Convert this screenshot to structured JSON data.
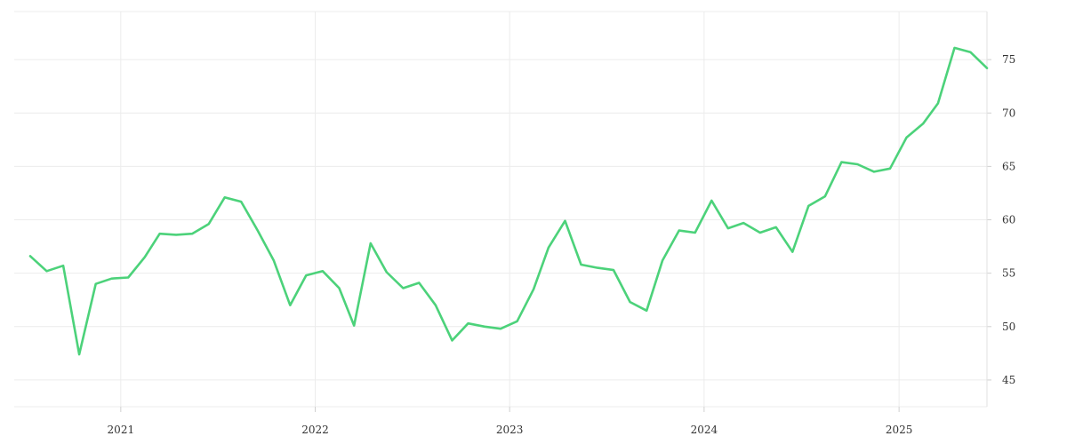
{
  "chart_data": {
    "type": "line",
    "title": "",
    "xlabel": "",
    "ylabel": "",
    "grid": true,
    "y_axis_side": "right",
    "line_color": "#4cd27a",
    "x_ticks": [
      "2021",
      "2022",
      "2023",
      "2024",
      "2025"
    ],
    "y_ticks": [
      45,
      50,
      55,
      60,
      65,
      70,
      75
    ],
    "xlim": [
      "2020-06-15",
      "2025-06-15"
    ],
    "ylim": [
      42.5,
      79.5
    ],
    "series": [
      {
        "x": [
          "2020-07",
          "2020-08",
          "2020-09",
          "2020-10",
          "2020-11",
          "2020-12",
          "2021-01",
          "2021-02",
          "2021-03",
          "2021-04",
          "2021-05",
          "2021-06",
          "2021-07",
          "2021-08",
          "2021-09",
          "2021-10",
          "2021-11",
          "2021-12",
          "2022-01",
          "2022-02",
          "2022-03",
          "2022-04",
          "2022-05",
          "2022-06",
          "2022-07",
          "2022-08",
          "2022-09",
          "2022-10",
          "2022-11",
          "2022-12",
          "2023-01",
          "2023-02",
          "2023-03",
          "2023-04",
          "2023-05",
          "2023-06",
          "2023-07",
          "2023-08",
          "2023-09",
          "2023-10",
          "2023-11",
          "2023-12",
          "2024-01",
          "2024-02",
          "2024-03",
          "2024-04",
          "2024-05",
          "2024-06",
          "2024-07",
          "2024-08",
          "2024-09",
          "2024-10",
          "2024-11",
          "2024-12",
          "2025-01",
          "2025-02",
          "2025-03",
          "2025-04",
          "2025-05",
          "2025-06"
        ],
        "values": [
          56.6,
          55.2,
          55.7,
          47.4,
          54.0,
          54.5,
          54.6,
          56.5,
          58.7,
          58.6,
          58.7,
          59.6,
          62.1,
          61.7,
          59.0,
          56.2,
          52.0,
          54.8,
          55.2,
          53.6,
          50.1,
          57.8,
          55.1,
          53.6,
          54.1,
          52.0,
          48.7,
          50.3,
          50.0,
          49.8,
          50.5,
          53.5,
          57.4,
          59.9,
          55.8,
          55.5,
          55.3,
          52.3,
          51.5,
          56.2,
          59.0,
          58.8,
          61.8,
          59.2,
          59.7,
          58.8,
          59.3,
          57.0,
          61.3,
          62.2,
          65.4,
          65.2,
          64.5,
          64.8,
          67.7,
          69.0,
          70.9,
          76.1,
          75.7,
          74.2
        ]
      }
    ]
  }
}
